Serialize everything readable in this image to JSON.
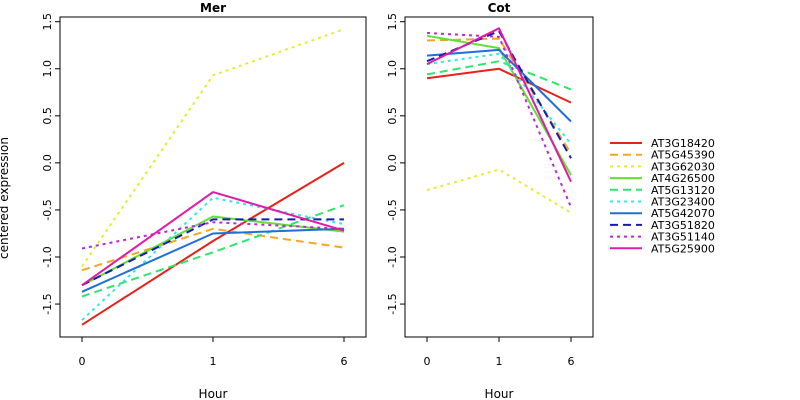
{
  "chart_data": {
    "type": "line",
    "ylabel": "centered expression",
    "xlabel": "Hour",
    "x": [
      "0",
      "1",
      "6"
    ],
    "ylim": [
      -1.85,
      1.55
    ],
    "yticks": [
      "-1.5",
      "-1.0",
      "-0.5",
      "0.0",
      "0.5",
      "1.0",
      "1.5"
    ],
    "ytick_values": [
      -1.5,
      -1.0,
      -0.5,
      0.0,
      0.5,
      1.0,
      1.5
    ],
    "legend_position": "right",
    "panels": [
      {
        "title": "Mer",
        "series": [
          {
            "name": "AT3G18420",
            "values": [
              -1.72,
              -0.83,
              0.0
            ]
          },
          {
            "name": "AT5G45390",
            "values": [
              -1.14,
              -0.7,
              -0.9
            ]
          },
          {
            "name": "AT3G62030",
            "values": [
              -1.1,
              0.93,
              1.42
            ]
          },
          {
            "name": "AT4G26500",
            "values": [
              -1.3,
              -0.57,
              -0.73
            ]
          },
          {
            "name": "AT5G13120",
            "values": [
              -1.42,
              -0.95,
              -0.45
            ]
          },
          {
            "name": "AT3G23400",
            "values": [
              -1.67,
              -0.37,
              -0.65
            ]
          },
          {
            "name": "AT5G42070",
            "values": [
              -1.37,
              -0.75,
              -0.7
            ]
          },
          {
            "name": "AT3G51820",
            "values": [
              -1.3,
              -0.6,
              -0.6
            ]
          },
          {
            "name": "AT3G51140",
            "values": [
              -0.91,
              -0.63,
              -0.7
            ]
          },
          {
            "name": "AT5G25900",
            "values": [
              -1.3,
              -0.31,
              -0.72
            ]
          }
        ]
      },
      {
        "title": "Cot",
        "series": [
          {
            "name": "AT3G18420",
            "values": [
              0.9,
              1.0,
              0.64
            ]
          },
          {
            "name": "AT5G45390",
            "values": [
              1.3,
              1.32,
              0.1
            ]
          },
          {
            "name": "AT3G62030",
            "values": [
              -0.29,
              -0.07,
              -0.53
            ]
          },
          {
            "name": "AT4G26500",
            "values": [
              1.35,
              1.22,
              -0.13
            ]
          },
          {
            "name": "AT5G13120",
            "values": [
              0.94,
              1.08,
              0.78
            ]
          },
          {
            "name": "AT3G23400",
            "values": [
              1.05,
              1.16,
              0.2
            ]
          },
          {
            "name": "AT5G42070",
            "values": [
              1.14,
              1.2,
              0.44
            ]
          },
          {
            "name": "AT3G51820",
            "values": [
              1.08,
              1.4,
              0.05
            ]
          },
          {
            "name": "AT3G51140",
            "values": [
              1.38,
              1.34,
              -0.47
            ]
          },
          {
            "name": "AT5G25900",
            "values": [
              1.05,
              1.43,
              -0.2
            ]
          }
        ]
      }
    ],
    "styles": [
      {
        "color": "#e8211b",
        "dash": "solid"
      },
      {
        "color": "#f5a623",
        "dash": "dashed"
      },
      {
        "color": "#e5ed31",
        "dash": "dotted"
      },
      {
        "color": "#5fe033",
        "dash": "solid"
      },
      {
        "color": "#2ee66b",
        "dash": "dashed"
      },
      {
        "color": "#33e8e8",
        "dash": "dotted"
      },
      {
        "color": "#1f6fdb",
        "dash": "solid"
      },
      {
        "color": "#1a1ab0",
        "dash": "dashed"
      },
      {
        "color": "#bb28d4",
        "dash": "dotted"
      },
      {
        "color": "#e21aa8",
        "dash": "solid"
      }
    ]
  }
}
